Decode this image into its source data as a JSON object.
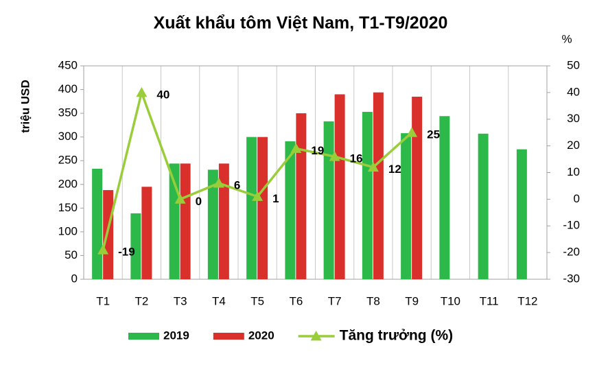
{
  "chart_data": {
    "type": "bar_line",
    "title": "Xuất khẩu tôm Việt Nam, T1-T9/2020",
    "y_label": "triệu USD",
    "y2_label": "%",
    "categories": [
      "T1",
      "T2",
      "T3",
      "T4",
      "T5",
      "T6",
      "T7",
      "T8",
      "T9",
      "T10",
      "T11",
      "T12"
    ],
    "series": [
      {
        "name": "2019",
        "type": "bar",
        "color": "#2db84a",
        "values": [
          233,
          139,
          244,
          231,
          300,
          291,
          333,
          353,
          308,
          344,
          307,
          274
        ]
      },
      {
        "name": "2020",
        "type": "bar",
        "color": "#d9302c",
        "values": [
          188,
          195,
          244,
          244,
          300,
          350,
          390,
          394,
          385,
          null,
          null,
          null
        ]
      },
      {
        "name": "Tăng trưởng (%)",
        "type": "line",
        "axis": "y2",
        "color": "#9acd3a",
        "values": [
          -19,
          40,
          0,
          6,
          1,
          19,
          16,
          12,
          25,
          null,
          null,
          null
        ]
      }
    ],
    "ylim": [
      0,
      450
    ],
    "yticks": [
      0,
      50,
      100,
      150,
      200,
      250,
      300,
      350,
      400,
      450
    ],
    "y2lim": [
      -30,
      50
    ],
    "y2ticks": [
      -30,
      -20,
      -10,
      0,
      10,
      20,
      30,
      40,
      50
    ],
    "legend": "bottom"
  }
}
